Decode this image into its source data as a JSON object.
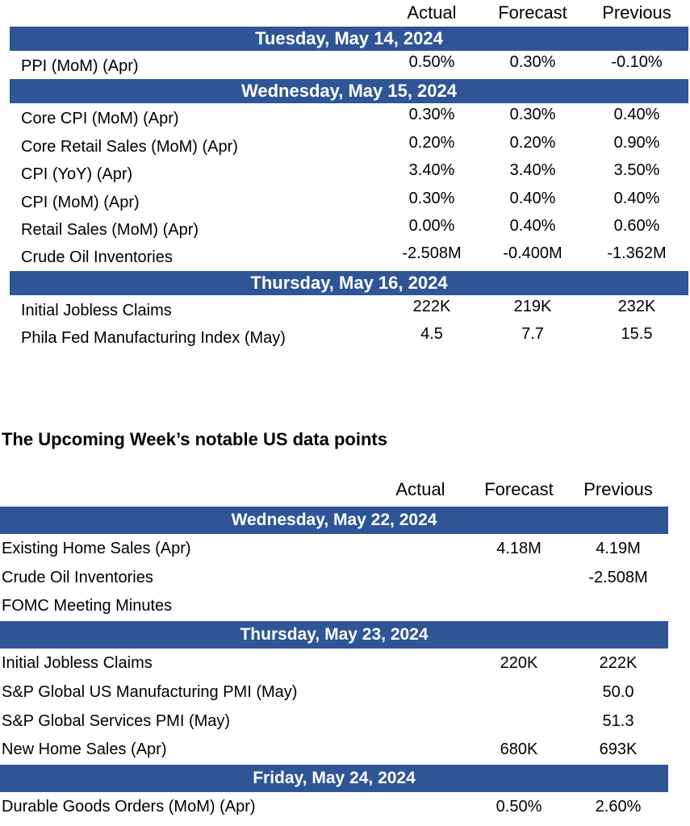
{
  "table1": {
    "columns": [
      "Actual",
      "Forecast",
      "Previous"
    ],
    "sections": [
      {
        "date": "Tuesday, May 14, 2024",
        "rows": [
          {
            "label": "PPI (MoM) (Apr)",
            "values": [
              "0.50%",
              "0.30%",
              "-0.10%"
            ]
          }
        ]
      },
      {
        "date": "Wednesday, May 15, 2024",
        "rows": [
          {
            "label": "Core CPI (MoM) (Apr)",
            "values": [
              "0.30%",
              "0.30%",
              "0.40%"
            ]
          },
          {
            "label": "Core Retail Sales (MoM) (Apr)",
            "values": [
              "0.20%",
              "0.20%",
              "0.90%"
            ]
          },
          {
            "label": "CPI (YoY) (Apr)",
            "values": [
              "3.40%",
              "3.40%",
              "3.50%"
            ]
          },
          {
            "label": "CPI (MoM) (Apr)",
            "values": [
              "0.30%",
              "0.40%",
              "0.40%"
            ]
          },
          {
            "label": "Retail Sales (MoM) (Apr)",
            "values": [
              "0.00%",
              "0.40%",
              "0.60%"
            ]
          },
          {
            "label": "Crude Oil Inventories",
            "values": [
              "-2.508M",
              "-0.400M",
              "-1.362M"
            ]
          }
        ]
      },
      {
        "date": "Thursday, May 16, 2024",
        "rows": [
          {
            "label": "Initial Jobless Claims",
            "values": [
              "222K",
              "219K",
              "232K"
            ]
          },
          {
            "label": "Phila Fed Manufacturing Index (May)",
            "values": [
              "4.5",
              "7.7",
              "15.5"
            ]
          }
        ]
      }
    ]
  },
  "heading": "The Upcoming Week’s notable US data points",
  "table2": {
    "columns": [
      "Actual",
      "Forecast",
      "Previous"
    ],
    "sections": [
      {
        "date": "Wednesday, May 22, 2024",
        "rows": [
          {
            "label": "Existing Home Sales (Apr)",
            "values": [
              null,
              "4.18M",
              "4.19M"
            ]
          },
          {
            "label": "Crude Oil Inventories",
            "values": [
              null,
              null,
              "-2.508M"
            ]
          },
          {
            "label": "FOMC Meeting Minutes",
            "values": [
              null,
              null,
              null
            ]
          }
        ]
      },
      {
        "date": "Thursday, May 23, 2024",
        "rows": [
          {
            "label": "Initial Jobless Claims",
            "values": [
              null,
              "220K",
              "222K"
            ]
          },
          {
            "label": "S&P Global US Manufacturing PMI (May)",
            "values": [
              null,
              null,
              "50.0"
            ]
          },
          {
            "label": "S&P Global Services PMI (May)",
            "values": [
              null,
              null,
              "51.3"
            ]
          },
          {
            "label": "New Home Sales (Apr)",
            "values": [
              null,
              "680K",
              "693K"
            ]
          }
        ]
      },
      {
        "date": "Friday, May 24, 2024",
        "rows": [
          {
            "label": "Durable Goods Orders (MoM) (Apr)",
            "values": [
              null,
              "0.50%",
              "2.60%"
            ]
          }
        ]
      }
    ]
  }
}
